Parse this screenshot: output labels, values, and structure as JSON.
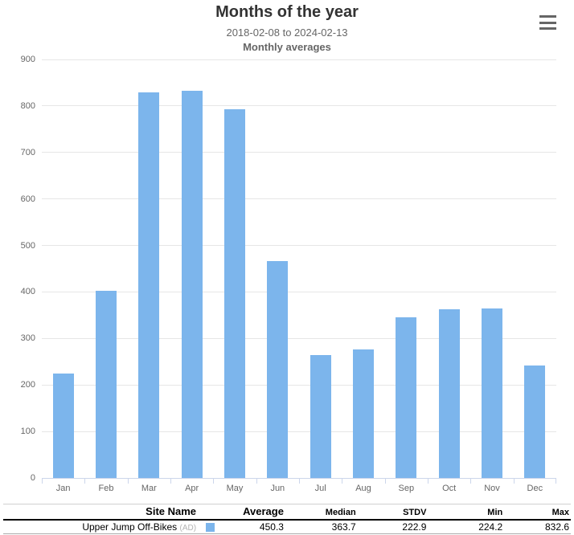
{
  "colors": {
    "bar": "#7cb5ec",
    "grid": "#e6e6e6",
    "axis": "#ccd6eb",
    "label_text": "#666666",
    "title_text": "#333333",
    "menu_icon": "#666666"
  },
  "header": {
    "title": "Months of the year",
    "subtitle": "2018-02-08 to 2024-02-13",
    "subtitle2": "Monthly averages",
    "menu_icon": "hamburger-menu"
  },
  "chart_data": {
    "type": "bar",
    "title": "Months of the year",
    "subtitle": "2018-02-08 to 2024-02-13",
    "subtitle2": "Monthly averages",
    "categories": [
      "Jan",
      "Feb",
      "Mar",
      "Apr",
      "May",
      "Jun",
      "Jul",
      "Aug",
      "Sep",
      "Oct",
      "Nov",
      "Dec"
    ],
    "series": [
      {
        "name": "Upper Jump Off-Bikes (AD)",
        "color": "#7cb5ec",
        "values": [
          224.2,
          403,
          829,
          832.6,
          793,
          466,
          264,
          277,
          346,
          363,
          365,
          241
        ]
      }
    ],
    "xlabel": "",
    "ylabel": "",
    "ylim": [
      0,
      900
    ],
    "y_ticks": [
      0,
      100,
      200,
      300,
      400,
      500,
      600,
      700,
      800,
      900
    ],
    "grid": true,
    "legend_position": "table-below"
  },
  "table": {
    "headers": {
      "site_name": "Site Name",
      "average": "Average",
      "median": "Median",
      "stdv": "STDV",
      "min": "Min",
      "max": "Max"
    },
    "rows": [
      {
        "site_name": "Upper Jump Off-Bikes",
        "site_suffix": "(AD)",
        "average": "450.3",
        "median": "363.7",
        "stdv": "222.9",
        "min": "224.2",
        "max": "832.6"
      }
    ]
  }
}
